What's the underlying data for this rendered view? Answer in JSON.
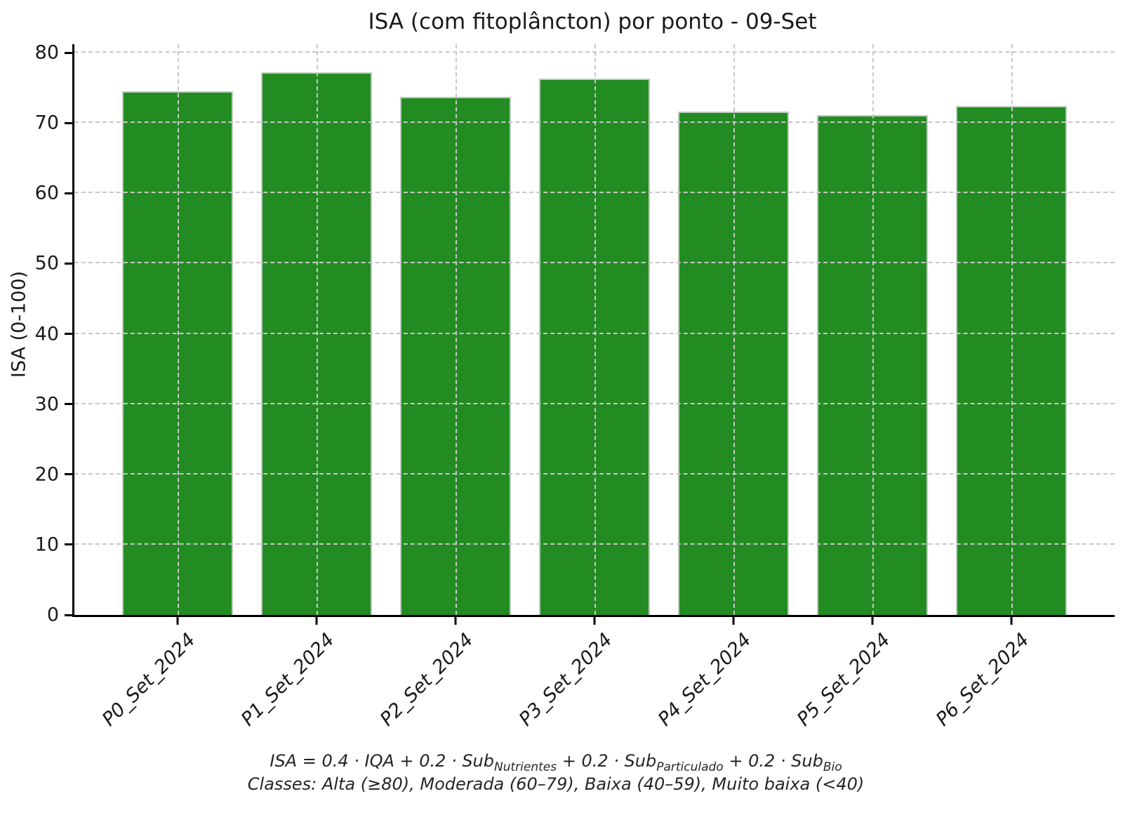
{
  "chart_data": {
    "type": "bar",
    "title": "ISA (com fitoplâncton) por ponto - 09-Set",
    "ylabel": "ISA (0-100)",
    "xlabel": "",
    "categories": [
      "P0_Set_2024",
      "P1_Set_2024",
      "P2_Set_2024",
      "P3_Set_2024",
      "P4_Set_2024",
      "P5_Set_2024",
      "P6_Set_2024"
    ],
    "values": [
      74.5,
      77.2,
      73.7,
      76.3,
      71.6,
      71.1,
      72.4
    ],
    "ylim": [
      0,
      81.2
    ],
    "yticks": [
      0,
      10,
      20,
      30,
      40,
      50,
      60,
      70,
      80
    ],
    "bar_color": "#228b22",
    "bar_edge_color": "#d6d6d6",
    "grid": "dashed gray gridlines, horizontal at y ticks and vertical at bar centers, drawn above bars",
    "legend": "none",
    "footnote": {
      "formula_segments": [
        {
          "text": "ISA = 0.4 · IQA + 0.2 · Sub",
          "sub": "Nutrientes"
        },
        {
          "text": " + 0.2 · Sub",
          "sub": "Particulado"
        },
        {
          "text": " + 0.2 · Sub",
          "sub": "Bio"
        }
      ],
      "classes_line": "Classes: Alta (≥80), Moderada (60–79), Baixa (40–59), Muito baixa (<40)"
    }
  }
}
